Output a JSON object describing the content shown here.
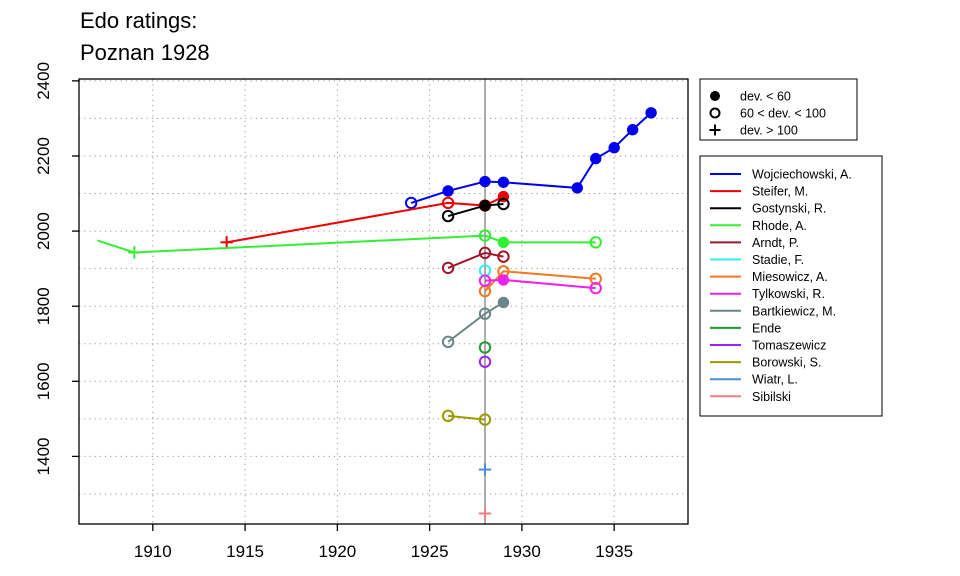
{
  "chart_data": {
    "type": "line",
    "title": "Edo ratings:",
    "subtitle": "Poznan 1928",
    "xlabel": "",
    "ylabel": "",
    "xlim": [
      1906,
      1939
    ],
    "ylim": [
      1220,
      2405
    ],
    "x_ticks": [
      1910,
      1915,
      1920,
      1925,
      1930,
      1935
    ],
    "y_ticks": [
      1400,
      1600,
      1800,
      2000,
      2200,
      2400
    ],
    "grid": "dotted",
    "event_year": 1928,
    "legend_placement": "right",
    "marker_legend": [
      {
        "marker": "filled",
        "label": "dev. < 60"
      },
      {
        "marker": "open",
        "label": "60 < dev. < 100"
      },
      {
        "marker": "plus",
        "label": "dev. > 100"
      }
    ],
    "series": [
      {
        "name": "Wojciechowski, A.",
        "color": "#0000ee",
        "points": [
          [
            1924,
            2075,
            "open"
          ],
          [
            1926,
            2107,
            "filled"
          ],
          [
            1928,
            2132,
            "filled"
          ],
          [
            1929,
            2130,
            "filled"
          ],
          [
            1933,
            2115,
            "filled"
          ],
          [
            1934,
            2193,
            "filled"
          ],
          [
            1935,
            2222,
            "filled"
          ],
          [
            1936,
            2270,
            "filled"
          ],
          [
            1937,
            2315,
            "filled"
          ]
        ]
      },
      {
        "name": "Steifer, M.",
        "color": "#ee0000",
        "points": [
          [
            1914,
            1970,
            "plus"
          ],
          [
            1926,
            2075,
            "open"
          ],
          [
            1928,
            2068,
            "open"
          ],
          [
            1929,
            2092,
            "filled"
          ]
        ]
      },
      {
        "name": "Gostynski, R.",
        "color": "#000000",
        "points": [
          [
            1926,
            2040,
            "open"
          ],
          [
            1928,
            2068,
            "filled"
          ],
          [
            1929,
            2072,
            "open"
          ]
        ]
      },
      {
        "name": "Rhode, A.",
        "color": "#33ee33",
        "points": [
          [
            1907,
            1975,
            "none"
          ],
          [
            1909,
            1943,
            "plus"
          ],
          [
            1928,
            1988,
            "open"
          ],
          [
            1929,
            1970,
            "filled"
          ],
          [
            1934,
            1970,
            "open"
          ]
        ]
      },
      {
        "name": "Arndt, P.",
        "color": "#a0172b",
        "points": [
          [
            1926,
            1902,
            "open"
          ],
          [
            1928,
            1942,
            "open"
          ],
          [
            1929,
            1932,
            "open"
          ]
        ]
      },
      {
        "name": "Stadie, F.",
        "color": "#33eeee",
        "points": [
          [
            1928,
            1895,
            "open"
          ]
        ]
      },
      {
        "name": "Miesowicz, A.",
        "color": "#f07820",
        "points": [
          [
            1928,
            1840,
            "open"
          ],
          [
            1929,
            1893,
            "open"
          ],
          [
            1934,
            1873,
            "open"
          ]
        ]
      },
      {
        "name": "Tylkowski, R.",
        "color": "#ee22ee",
        "points": [
          [
            1928,
            1868,
            "open"
          ],
          [
            1929,
            1870,
            "filled"
          ],
          [
            1934,
            1848,
            "open"
          ]
        ]
      },
      {
        "name": "Bartkiewicz, M.",
        "color": "#6a8588",
        "points": [
          [
            1926,
            1705,
            "open"
          ],
          [
            1928,
            1780,
            "open"
          ],
          [
            1929,
            1810,
            "filled"
          ]
        ]
      },
      {
        "name": "Ende",
        "color": "#1e9a2e",
        "points": [
          [
            1928,
            1690,
            "open"
          ]
        ]
      },
      {
        "name": "Tomaszewicz",
        "color": "#a020ee",
        "points": [
          [
            1928,
            1652,
            "open"
          ]
        ]
      },
      {
        "name": "Borowski, S.",
        "color": "#999900",
        "points": [
          [
            1926,
            1508,
            "open"
          ],
          [
            1928,
            1498,
            "open"
          ]
        ]
      },
      {
        "name": "Wiatr, L.",
        "color": "#4a90d9",
        "points": [
          [
            1928,
            1365,
            "plus"
          ]
        ]
      },
      {
        "name": "Sibilski",
        "color": "#f08080",
        "points": [
          [
            1928,
            1248,
            "plus"
          ]
        ]
      }
    ]
  }
}
